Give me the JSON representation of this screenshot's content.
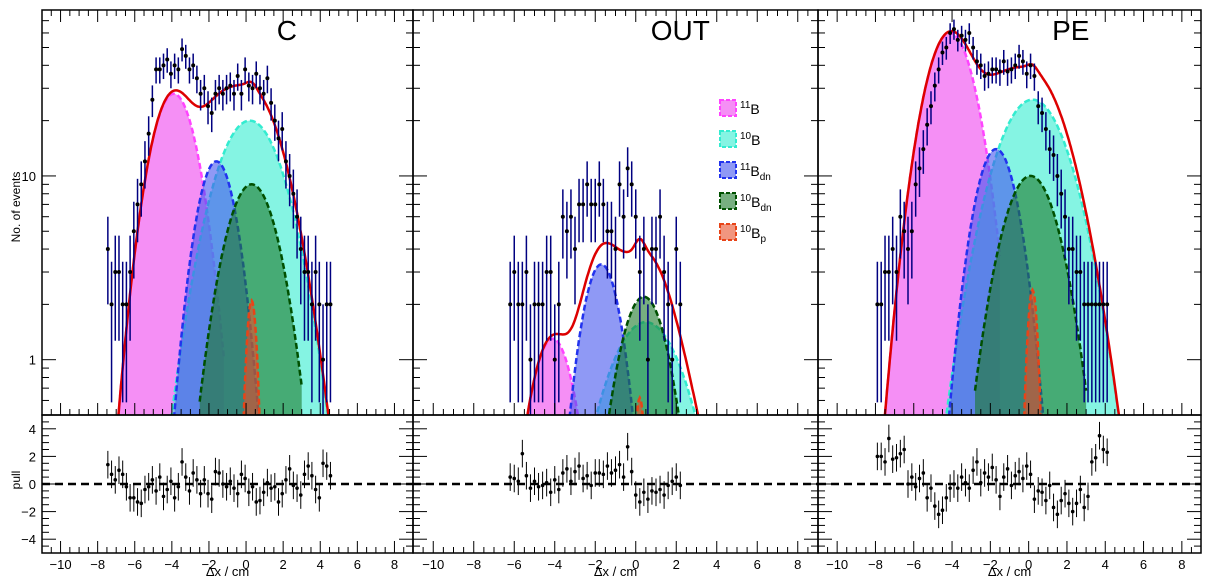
{
  "figure": {
    "ylabel_top": "No. of events",
    "ylabel_bottom": "pull",
    "xlabel": "Δx / cm"
  },
  "legend": [
    {
      "key": "b11",
      "sup": "11",
      "base": "B",
      "sub": "",
      "color": "#ee44ee"
    },
    {
      "key": "b10",
      "sup": "10",
      "base": "B",
      "sub": "",
      "color": "#33ecd0"
    },
    {
      "key": "b11dn",
      "sup": "11",
      "base": "B",
      "sub": "dn",
      "color": "#4455ee"
    },
    {
      "key": "b10dn",
      "sup": "10",
      "base": "B",
      "sub": "dn",
      "color": "#1c7a2c"
    },
    {
      "key": "b10p",
      "sup": "10",
      "base": "B",
      "sub": "p",
      "color": "#e8502a"
    }
  ],
  "colors": {
    "total_fit": "#dd0000",
    "data_points": "#000000",
    "error_bars": "#000080",
    "b11": "#ee44ee",
    "b10": "#33ecd0",
    "b11dn": "#4455ee",
    "b10dn": "#1c7a2c",
    "b10p": "#e8502a"
  },
  "chart_data": [
    {
      "type": "scatter",
      "title": "C",
      "xlim": [
        -11,
        9
      ],
      "ylim": [
        0.5,
        80
      ],
      "yscale": "log",
      "pull_ylim": [
        -5,
        5
      ],
      "x_ticks": [
        -10,
        -8,
        -6,
        -4,
        -2,
        0,
        2,
        4,
        6,
        8
      ],
      "y_ticks": [
        1,
        10
      ],
      "pull_ticks": [
        -4,
        -2,
        0,
        2,
        4
      ],
      "components": {
        "b11": {
          "amp": 28,
          "mu": -3.9,
          "sigma": 1.05,
          "xmin": -7.5,
          "xmax": -1.2
        },
        "b10": {
          "amp": 20,
          "mu": 0.2,
          "sigma": 1.55,
          "xmin": -5,
          "xmax": 4.6
        },
        "b11dn": {
          "amp": 12,
          "mu": -1.6,
          "sigma": 0.9,
          "xmin": -4,
          "xmax": 1
        },
        "b10dn": {
          "amp": 9,
          "mu": 0.3,
          "sigma": 1.2,
          "xmin": -2.5,
          "xmax": 3
        },
        "b10p": {
          "amp": 2.1,
          "mu": 0.3,
          "sigma": 0.25,
          "xmin": -0.3,
          "xmax": 0.9
        }
      },
      "data": {
        "x_start": -7.45,
        "x_step": 0.2,
        "y": [
          4,
          2,
          3,
          3,
          2,
          2,
          3,
          5,
          7,
          9,
          12,
          17,
          26,
          38,
          38,
          40,
          43,
          36,
          40,
          38,
          49,
          45,
          38,
          40,
          34,
          28,
          30,
          24,
          22,
          28,
          30,
          28,
          30,
          31,
          28,
          35,
          28,
          38,
          31,
          30,
          36,
          30,
          28,
          34,
          25,
          20,
          16,
          18,
          12,
          10,
          8,
          6,
          4,
          3,
          3,
          2,
          3,
          2,
          1,
          2,
          2
        ],
        "pull": [
          1.4,
          0.7,
          0.3,
          1.0,
          0.7,
          -0.2,
          -1.0,
          -1.0,
          -1.3,
          -1.4,
          -0.4,
          -0.2,
          0.3,
          -0.5,
          0.5,
          -0.9,
          -0.4,
          0.2,
          -1.0,
          -0.2,
          1.6,
          0.5,
          -0.5,
          0.8,
          0.3,
          -0.7,
          0.3,
          -0.7,
          -1.1,
          0.9,
          0.8,
          0.0,
          -0.2,
          0.2,
          -0.3,
          -0.7,
          0.7,
          0.4,
          -0.6,
          -0.2,
          -1.3,
          -1.2,
          -0.6,
          0.1,
          -0.3,
          -0.2,
          -1.3,
          -0.7,
          0.3,
          1.1,
          -0.1,
          -0.3,
          -0.8,
          0.7,
          1.3,
          0.6,
          -0.4,
          -1.0,
          1.5,
          1.3,
          0.6
        ]
      }
    },
    {
      "type": "scatter",
      "title": "OUT",
      "xlim": [
        -11,
        9
      ],
      "ylim": [
        0.5,
        80
      ],
      "yscale": "log",
      "pull_ylim": [
        -5,
        5
      ],
      "x_ticks": [
        -10,
        -8,
        -6,
        -4,
        -2,
        0,
        2,
        4,
        6,
        8
      ],
      "y_ticks": [
        1,
        10
      ],
      "pull_ticks": [
        -4,
        -2,
        0,
        2,
        4
      ],
      "components": {
        "b11": {
          "amp": 1.3,
          "mu": -4.1,
          "sigma": 0.9,
          "xmin": -5.8,
          "xmax": -2.6
        },
        "b10": {
          "amp": 1.6,
          "mu": 0.5,
          "sigma": 1.6,
          "xmin": -3.2,
          "xmax": 3.2
        },
        "b11dn": {
          "amp": 3.3,
          "mu": -1.7,
          "sigma": 0.8,
          "xmin": -3.6,
          "xmax": 0.5
        },
        "b10dn": {
          "amp": 2.2,
          "mu": 0.4,
          "sigma": 1.0,
          "xmin": -1.5,
          "xmax": 2.2
        },
        "b10p": {
          "amp": 0.62,
          "mu": 0.2,
          "sigma": 0.22,
          "xmin": -0.3,
          "xmax": 0.6
        }
      },
      "data": {
        "x_start": -6.2,
        "x_step": 0.2,
        "y": [
          2,
          3,
          2,
          2,
          3,
          1,
          2,
          2,
          2,
          3,
          3,
          1,
          2,
          6,
          5,
          6,
          4,
          7,
          7,
          9,
          7,
          7,
          9,
          7,
          5,
          5,
          4,
          9,
          6,
          11,
          9,
          6,
          3,
          4,
          1,
          4,
          4,
          6,
          3,
          2,
          1,
          4,
          2
        ],
        "pull": [
          0.5,
          0.4,
          0.2,
          2.2,
          0.6,
          -0.3,
          0.2,
          -0.2,
          -0.1,
          0.1,
          -0.6,
          0.3,
          -0.4,
          0.8,
          1.1,
          0.2,
          0.9,
          1.3,
          0.4,
          0.6,
          -0.1,
          0.8,
          0.8,
          0.7,
          1.3,
          0.8,
          1.0,
          1.4,
          0.5,
          2.7,
          0.9,
          -0.8,
          -1.3,
          -0.6,
          -1.1,
          -0.5,
          -0.6,
          -0.4,
          -0.8,
          -0.1,
          0.2,
          0.5,
          -0.1
        ]
      }
    },
    {
      "type": "scatter",
      "title": "PE",
      "xlim": [
        -11,
        9
      ],
      "ylim": [
        0.5,
        80
      ],
      "yscale": "log",
      "pull_ylim": [
        -5,
        5
      ],
      "x_ticks": [
        -10,
        -8,
        -6,
        -4,
        -2,
        0,
        2,
        4,
        6,
        8
      ],
      "y_ticks": [
        1,
        10
      ],
      "pull_ticks": [
        -4,
        -2,
        0,
        2,
        4
      ],
      "components": {
        "b11": {
          "amp": 60,
          "mu": -4.1,
          "sigma": 1.1,
          "xmin": -8,
          "xmax": -1.5
        },
        "b10": {
          "amp": 26,
          "mu": 0.2,
          "sigma": 1.6,
          "xmin": -5,
          "xmax": 4.8
        },
        "b11dn": {
          "amp": 14,
          "mu": -1.7,
          "sigma": 0.95,
          "xmin": -4.2,
          "xmax": 1
        },
        "b10dn": {
          "amp": 10,
          "mu": 0.1,
          "sigma": 1.25,
          "xmin": -2.8,
          "xmax": 3
        },
        "b10p": {
          "amp": 2.4,
          "mu": 0.2,
          "sigma": 0.24,
          "xmin": -0.4,
          "xmax": 0.8
        }
      },
      "data": {
        "x_start": -7.9,
        "x_step": 0.2,
        "y": [
          2,
          2,
          3,
          3,
          4,
          3,
          6,
          5,
          4,
          5,
          9,
          11,
          14,
          19,
          24,
          31,
          38,
          47,
          50,
          60,
          63,
          55,
          58,
          55,
          60,
          50,
          42,
          40,
          35,
          36,
          38,
          38,
          37,
          42,
          37,
          38,
          40,
          45,
          42,
          36,
          40,
          35,
          24,
          22,
          18,
          14,
          13,
          10,
          8,
          6,
          4,
          4,
          3,
          3,
          2,
          2,
          2,
          2,
          2,
          2,
          2
        ],
        "pull": [
          2.0,
          2.0,
          1.6,
          3.3,
          1.8,
          1.9,
          2.2,
          2.5,
          0.0,
          0.5,
          -0.2,
          0.4,
          0.8,
          -1.0,
          -0.3,
          -1.6,
          -2.2,
          -1.9,
          -1.0,
          -0.3,
          0.0,
          -0.3,
          0.5,
          0.1,
          -0.3,
          1.0,
          1.6,
          0.1,
          0.8,
          0.5,
          1.2,
          0.3,
          -0.9,
          0.5,
          1.1,
          -0.1,
          0.6,
          0.9,
          0.4,
          1.3,
          0.7,
          -1.1,
          -0.5,
          -0.6,
          -1.2,
          -0.1,
          -1.7,
          -2.2,
          -1.2,
          -0.7,
          -1.4,
          -2.0,
          -1.4,
          -0.4,
          -1.7,
          -0.9,
          1.6,
          1.9,
          3.5,
          2.5,
          2.3
        ]
      }
    }
  ]
}
